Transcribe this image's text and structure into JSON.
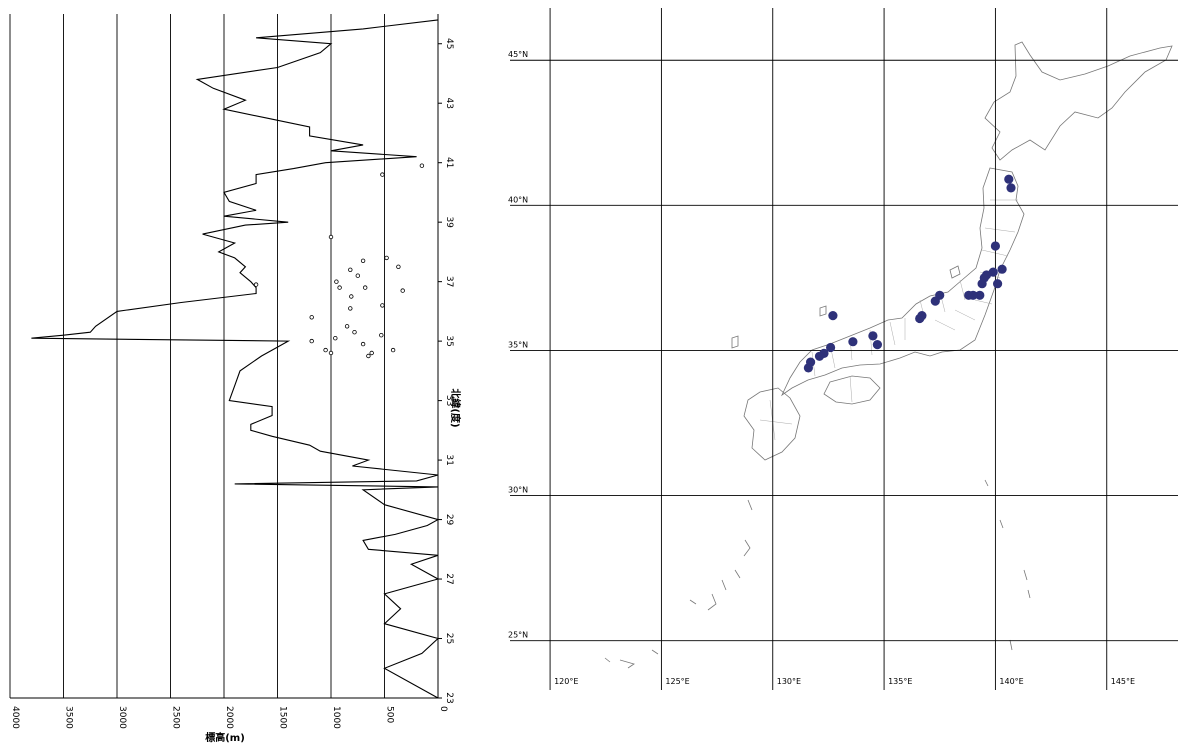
{
  "chart_data": [
    {
      "type": "line",
      "orientation": "rotated",
      "xlabel": "北緯(度)",
      "ylabel": "標高(m)",
      "xlim": [
        23,
        46
      ],
      "ylim": [
        0,
        4000
      ],
      "y_reversed": true,
      "x_ticks": [
        "23",
        "25",
        "27",
        "29",
        "31",
        "33",
        "35",
        "37",
        "39",
        "41",
        "43",
        "45"
      ],
      "y_ticks": [
        "4000",
        "3500",
        "3000",
        "2500",
        "2000",
        "1500",
        "1000",
        "500",
        "0"
      ],
      "grid": "major",
      "series": [
        {
          "style": "line",
          "x": [
            23.0,
            24.0,
            24.5,
            25.0,
            25.5,
            26.0,
            26.5,
            27.0,
            27.5,
            27.8,
            28.0,
            28.3,
            28.5,
            28.8,
            29.0,
            29.5,
            30.0,
            30.1,
            30.2,
            30.3,
            30.5,
            30.8,
            31.0,
            31.3,
            31.5,
            31.8,
            32.0,
            32.2,
            32.5,
            32.8,
            33.0,
            33.5,
            34.0,
            34.5,
            34.8,
            35.0,
            35.1,
            35.2,
            35.3,
            35.5,
            36.0,
            36.3,
            36.6,
            36.8,
            37.0,
            37.3,
            37.5,
            37.8,
            38.0,
            38.3,
            38.6,
            38.9,
            39.0,
            39.2,
            39.4,
            39.7,
            40.0,
            40.3,
            40.6,
            40.8,
            41.0,
            41.2,
            41.4,
            41.6,
            41.9,
            42.2,
            42.5,
            42.8,
            43.1,
            43.5,
            43.8,
            44.2,
            44.7,
            45.0,
            45.2,
            45.5,
            45.8
          ],
          "y": [
            0,
            500,
            150,
            0,
            500,
            350,
            500,
            0,
            250,
            0,
            650,
            700,
            400,
            100,
            0,
            500,
            700,
            0,
            1900,
            200,
            0,
            800,
            650,
            1100,
            1200,
            1550,
            1750,
            1750,
            1550,
            1550,
            1950,
            1900,
            1850,
            1650,
            1500,
            1400,
            3800,
            3500,
            3250,
            3200,
            3000,
            2400,
            1700,
            1700,
            1750,
            1850,
            1800,
            1900,
            2050,
            1900,
            2200,
            1800,
            1400,
            2000,
            1700,
            1950,
            2000,
            1700,
            1700,
            1350,
            1050,
            200,
            1000,
            700,
            1200,
            1200,
            1600,
            2000,
            1800,
            2100,
            2250,
            1500,
            1100,
            1000,
            1700,
            700,
            0
          ]
        },
        {
          "style": "scatter",
          "x": [
            40.9,
            40.6,
            38.5,
            37.8,
            37.7,
            37.5,
            37.4,
            37.2,
            37.0,
            36.9,
            36.8,
            36.8,
            36.7,
            36.5,
            36.2,
            36.1,
            35.8,
            35.5,
            35.3,
            35.2,
            35.1,
            35.0,
            34.9,
            34.7,
            34.7,
            34.6,
            34.6,
            34.5
          ],
          "y": [
            150,
            520,
            1000,
            480,
            700,
            370,
            820,
            750,
            950,
            1700,
            920,
            680,
            330,
            810,
            520,
            820,
            1180,
            850,
            780,
            530,
            960,
            1180,
            700,
            420,
            1050,
            620,
            1000,
            650
          ]
        }
      ]
    },
    {
      "type": "map",
      "x_ticks": [
        "120°E",
        "125°E",
        "130°E",
        "135°E",
        "140°E",
        "145°E"
      ],
      "y_ticks": [
        "25°N",
        "30°N",
        "35°N",
        "40°N",
        "45°N"
      ],
      "xlim": [
        118.2,
        148.2
      ],
      "ylim": [
        23.3,
        46.8
      ],
      "marker_color": "#2e3179",
      "points": [
        {
          "lon": 140.6,
          "lat": 40.9
        },
        {
          "lon": 140.7,
          "lat": 40.6
        },
        {
          "lon": 140.0,
          "lat": 38.6
        },
        {
          "lon": 140.3,
          "lat": 37.8
        },
        {
          "lon": 139.9,
          "lat": 37.7
        },
        {
          "lon": 139.6,
          "lat": 37.6
        },
        {
          "lon": 139.5,
          "lat": 37.5
        },
        {
          "lon": 139.4,
          "lat": 37.3
        },
        {
          "lon": 140.1,
          "lat": 37.3
        },
        {
          "lon": 139.3,
          "lat": 36.9
        },
        {
          "lon": 139.0,
          "lat": 36.9
        },
        {
          "lon": 138.8,
          "lat": 36.9
        },
        {
          "lon": 137.5,
          "lat": 36.9
        },
        {
          "lon": 137.3,
          "lat": 36.7
        },
        {
          "lon": 136.7,
          "lat": 36.2
        },
        {
          "lon": 136.6,
          "lat": 36.1
        },
        {
          "lon": 132.7,
          "lat": 36.2
        },
        {
          "lon": 134.5,
          "lat": 35.5
        },
        {
          "lon": 134.7,
          "lat": 35.2
        },
        {
          "lon": 133.6,
          "lat": 35.3
        },
        {
          "lon": 132.6,
          "lat": 35.1
        },
        {
          "lon": 132.3,
          "lat": 34.9
        },
        {
          "lon": 132.1,
          "lat": 34.8
        },
        {
          "lon": 131.7,
          "lat": 34.6
        },
        {
          "lon": 131.6,
          "lat": 34.4
        }
      ]
    }
  ]
}
